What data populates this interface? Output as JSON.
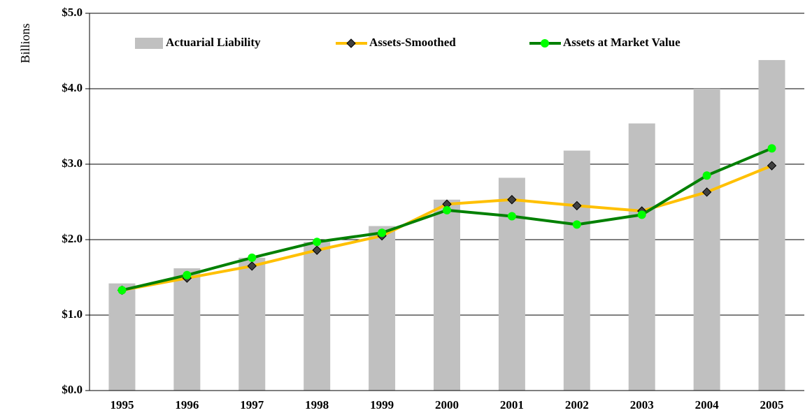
{
  "chart_data": {
    "type": "bar",
    "y_label": "Billions",
    "categories": [
      "1995",
      "1996",
      "1997",
      "1998",
      "1999",
      "2000",
      "2001",
      "2002",
      "2003",
      "2004",
      "2005"
    ],
    "series": [
      {
        "name": "Actuarial Liability",
        "type": "bar",
        "color": "#c0c0c0",
        "values": [
          1.42,
          1.62,
          1.76,
          1.97,
          2.18,
          2.53,
          2.82,
          3.18,
          3.54,
          4.0,
          4.38
        ]
      },
      {
        "name": "Assets-Smoothed",
        "type": "line",
        "color": "#ffc000",
        "marker": "diamond",
        "marker_color": "#404040",
        "values": [
          1.33,
          1.49,
          1.65,
          1.86,
          2.05,
          2.47,
          2.53,
          2.45,
          2.38,
          2.63,
          2.98
        ]
      },
      {
        "name": "Assets at Market Value",
        "type": "line",
        "color": "#008000",
        "marker": "circle",
        "marker_color": "#00ff00",
        "values": [
          1.33,
          1.53,
          1.76,
          1.97,
          2.09,
          2.39,
          2.31,
          2.2,
          2.33,
          2.85,
          3.21
        ]
      }
    ],
    "ylim": [
      0,
      5
    ],
    "yticks": [
      {
        "value": 0,
        "label": "$0.0"
      },
      {
        "value": 1,
        "label": "$1.0"
      },
      {
        "value": 2,
        "label": "$2.0"
      },
      {
        "value": 3,
        "label": "$3.0"
      },
      {
        "value": 4,
        "label": "$4.0"
      },
      {
        "value": 5,
        "label": "$5.0"
      }
    ],
    "grid": true,
    "legend": "top"
  }
}
